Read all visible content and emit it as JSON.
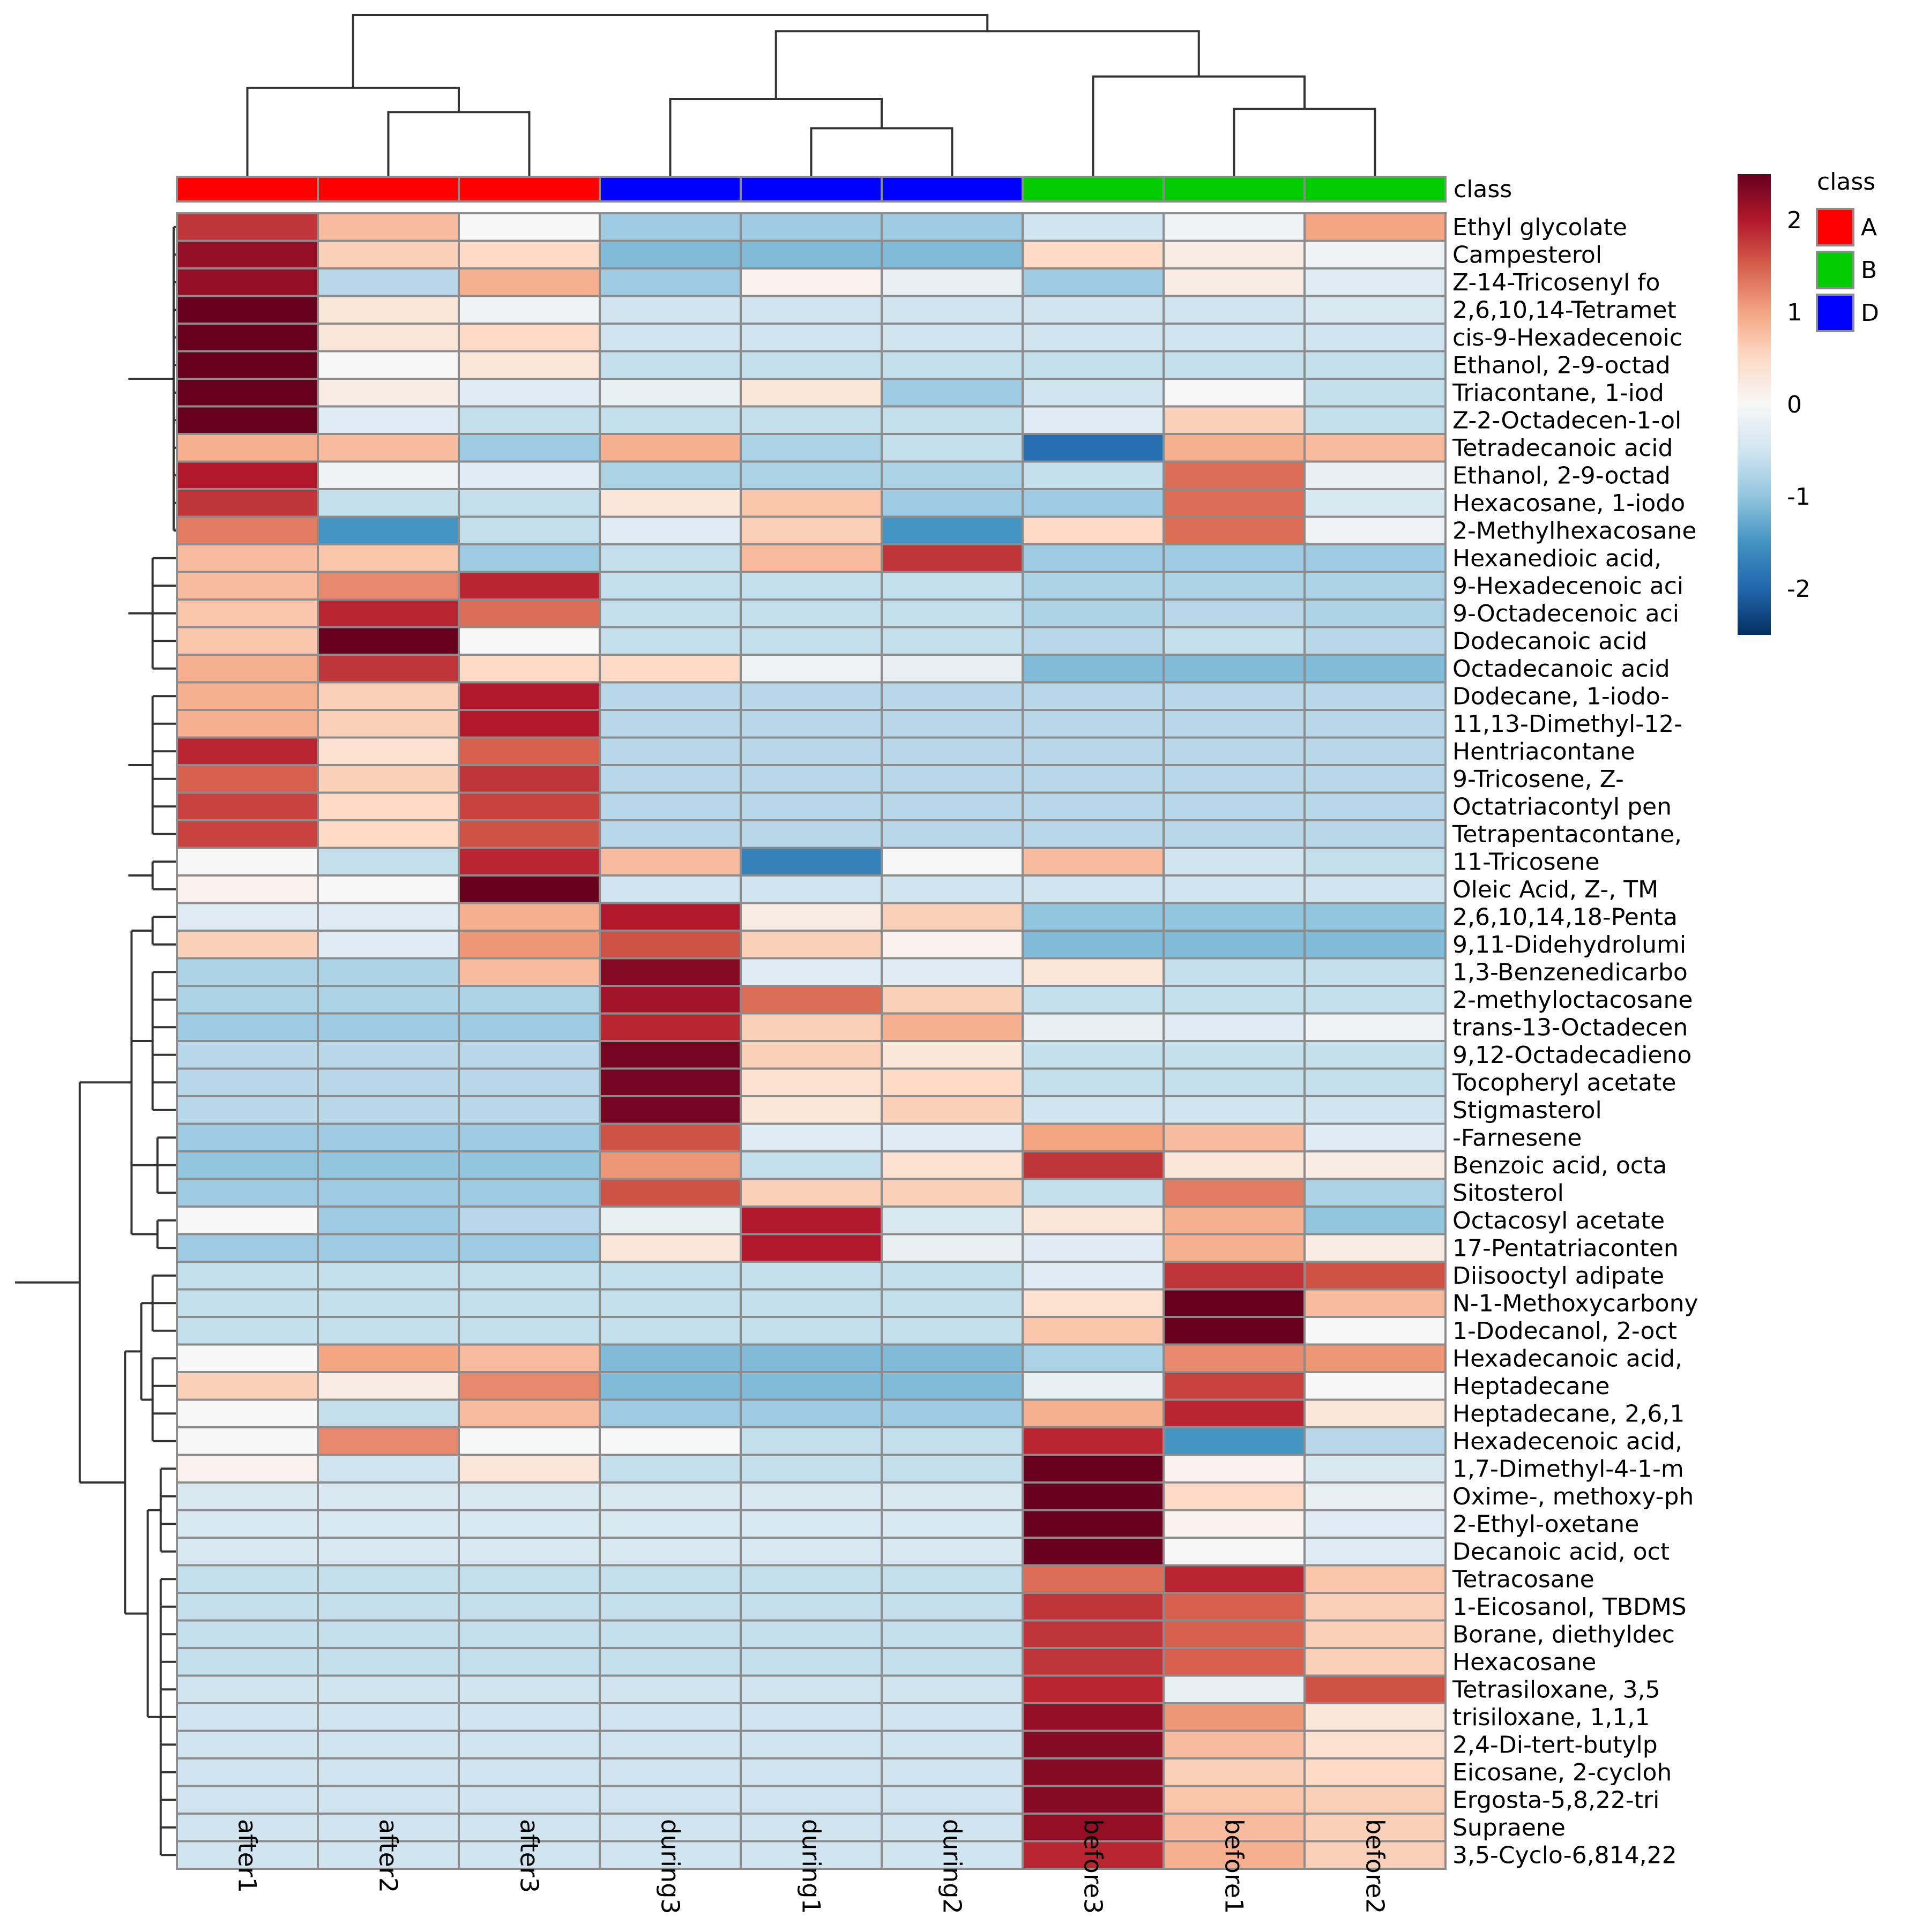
{
  "chart_data": {
    "type": "heatmap",
    "title": "",
    "columns": [
      "after1",
      "after2",
      "after3",
      "during3",
      "during1",
      "during2",
      "before3",
      "before1",
      "before2"
    ],
    "column_classes": [
      "A",
      "A",
      "A",
      "D",
      "D",
      "D",
      "B",
      "B",
      "B"
    ],
    "class_annotation_label": "class",
    "rows": [
      "Ethyl glycolate",
      "Campesterol",
      "Z-14-Tricosenyl fo",
      "2,6,10,14-Tetramet",
      "cis-9-Hexadecenoic",
      "Ethanol, 2-9-octad",
      "Triacontane, 1-iod",
      "Z-2-Octadecen-1-ol",
      "Tetradecanoic acid",
      "Ethanol, 2-9-octad",
      "Hexacosane, 1-iodo",
      "2-Methylhexacosane",
      "Hexanedioic acid,",
      "9-Hexadecenoic aci",
      "9-Octadecenoic aci",
      "Dodecanoic acid",
      "Octadecanoic acid",
      "Dodecane, 1-iodo-",
      "11,13-Dimethyl-12-",
      "Hentriacontane",
      "9-Tricosene, Z-",
      "Octatriacontyl pen",
      "Tetrapentacontane,",
      "11-Tricosene",
      "Oleic Acid, Z-, TM",
      "2,6,10,14,18-Penta",
      "9,11-Didehydrolumi",
      "1,3-Benzenedicarbo",
      "2-methyloctacosane",
      "trans-13-Octadecen",
      "9,12-Octadecadieno",
      "Tocopheryl acetate",
      "Stigmasterol",
      "-Farnesene",
      "Benzoic acid, octa",
      "Sitosterol",
      "Octacosyl acetate",
      "17-Pentatriaconten",
      "Diisooctyl adipate",
      "N-1-Methoxycarbony",
      "1-Dodecanol, 2-oct",
      "Hexadecanoic acid,",
      "Heptadecane",
      "Heptadecane, 2,6,1",
      "Hexadecenoic acid,",
      "1,7-Dimethyl-4-1-m",
      "Oxime-, methoxy-ph",
      "2-Ethyl-oxetane",
      "Decanoic acid, oct",
      "Tetracosane",
      "1-Eicosanol, TBDMS",
      "Borane, diethyldec",
      "Hexacosane",
      "Tetrasiloxane, 3,5",
      "trisiloxane, 1,1,1",
      "2,4-Di-tert-butylp",
      "Eicosane, 2-cycloh",
      "Ergosta-5,8,22-tri",
      "Supraene",
      "3,5-Cyclo-6,814,22"
    ],
    "values": [
      [
        1.8,
        0.8,
        0.0,
        -0.9,
        -0.9,
        -0.9,
        -0.5,
        -0.1,
        1.0
      ],
      [
        2.2,
        0.6,
        0.5,
        -1.1,
        -1.1,
        -1.1,
        0.5,
        0.2,
        -0.1
      ],
      [
        2.2,
        -0.7,
        0.9,
        -0.9,
        0.1,
        -0.2,
        -0.9,
        0.2,
        -0.3
      ],
      [
        2.5,
        0.3,
        -0.1,
        -0.5,
        -0.5,
        -0.5,
        -0.5,
        -0.5,
        -0.4
      ],
      [
        2.5,
        0.3,
        0.5,
        -0.5,
        -0.5,
        -0.5,
        -0.5,
        -0.5,
        -0.5
      ],
      [
        2.5,
        0.0,
        0.3,
        -0.6,
        -0.6,
        -0.6,
        -0.6,
        -0.6,
        -0.6
      ],
      [
        2.5,
        0.2,
        -0.3,
        -0.2,
        0.3,
        -0.9,
        -0.5,
        0.0,
        -0.6
      ],
      [
        2.5,
        -0.3,
        -0.6,
        -0.6,
        -0.6,
        -0.6,
        -0.3,
        0.6,
        -0.6
      ],
      [
        0.9,
        0.8,
        -0.9,
        0.9,
        -0.8,
        -0.6,
        -1.9,
        0.9,
        0.8
      ],
      [
        2.0,
        -0.1,
        -0.3,
        -0.8,
        -0.8,
        -0.8,
        -0.6,
        1.4,
        -0.2
      ],
      [
        1.8,
        -0.6,
        -0.6,
        0.3,
        0.7,
        -0.9,
        -0.9,
        1.4,
        -0.4
      ],
      [
        1.3,
        -1.5,
        -0.6,
        -0.3,
        0.6,
        -1.5,
        0.5,
        1.4,
        -0.1
      ],
      [
        0.8,
        0.7,
        -0.9,
        -0.6,
        0.8,
        1.8,
        -0.9,
        -0.9,
        -0.9
      ],
      [
        0.8,
        1.2,
        1.9,
        -0.6,
        -0.6,
        -0.6,
        -0.8,
        -0.8,
        -0.8
      ],
      [
        0.7,
        1.9,
        1.4,
        -0.6,
        -0.6,
        -0.6,
        -0.8,
        -0.7,
        -0.8
      ],
      [
        0.7,
        2.5,
        0.0,
        -0.6,
        -0.6,
        -0.6,
        -0.7,
        -0.6,
        -0.7
      ],
      [
        0.9,
        1.8,
        0.5,
        0.5,
        -0.1,
        -0.2,
        -1.1,
        -1.1,
        -1.1
      ],
      [
        0.9,
        0.6,
        2.0,
        -0.7,
        -0.7,
        -0.7,
        -0.7,
        -0.7,
        -0.7
      ],
      [
        0.9,
        0.6,
        2.0,
        -0.7,
        -0.7,
        -0.7,
        -0.7,
        -0.7,
        -0.7
      ],
      [
        1.9,
        0.4,
        1.5,
        -0.7,
        -0.7,
        -0.7,
        -0.7,
        -0.7,
        -0.7
      ],
      [
        1.5,
        0.6,
        1.8,
        -0.7,
        -0.7,
        -0.7,
        -0.7,
        -0.7,
        -0.7
      ],
      [
        1.7,
        0.5,
        1.7,
        -0.7,
        -0.7,
        -0.7,
        -0.7,
        -0.7,
        -0.7
      ],
      [
        1.7,
        0.5,
        1.6,
        -0.7,
        -0.7,
        -0.7,
        -0.7,
        -0.7,
        -0.7
      ],
      [
        0.0,
        -0.6,
        1.9,
        0.8,
        -1.7,
        0.0,
        0.8,
        -0.5,
        -0.6
      ],
      [
        0.1,
        0.0,
        2.6,
        -0.5,
        -0.5,
        -0.5,
        -0.5,
        -0.5,
        -0.5
      ],
      [
        -0.3,
        -0.3,
        0.9,
        2.0,
        0.2,
        0.6,
        -1.0,
        -1.0,
        -1.0
      ],
      [
        0.6,
        -0.3,
        1.1,
        1.6,
        0.6,
        0.1,
        -1.1,
        -1.1,
        -1.1
      ],
      [
        -0.8,
        -0.8,
        0.8,
        2.3,
        -0.3,
        -0.3,
        0.3,
        -0.6,
        -0.6
      ],
      [
        -0.8,
        -0.8,
        -0.8,
        2.1,
        1.4,
        0.6,
        -0.6,
        -0.6,
        -0.6
      ],
      [
        -0.9,
        -0.9,
        -0.9,
        1.9,
        0.6,
        0.9,
        -0.2,
        -0.3,
        -0.1
      ],
      [
        -0.7,
        -0.7,
        -0.7,
        2.4,
        0.6,
        0.3,
        -0.6,
        -0.6,
        -0.6
      ],
      [
        -0.7,
        -0.7,
        -0.7,
        2.4,
        0.4,
        0.5,
        -0.6,
        -0.6,
        -0.6
      ],
      [
        -0.7,
        -0.7,
        -0.7,
        2.4,
        0.3,
        0.6,
        -0.5,
        -0.5,
        -0.5
      ],
      [
        -0.9,
        -0.9,
        -0.9,
        1.6,
        -0.3,
        -0.3,
        1.0,
        0.8,
        -0.3
      ],
      [
        -1.0,
        -1.0,
        -1.0,
        1.1,
        -0.6,
        0.4,
        1.8,
        0.3,
        0.2
      ],
      [
        -0.9,
        -0.9,
        -0.9,
        1.6,
        0.6,
        0.6,
        -0.6,
        1.3,
        -0.8
      ],
      [
        0.0,
        -0.9,
        -0.7,
        -0.2,
        2.0,
        -0.4,
        0.3,
        0.9,
        -1.0
      ],
      [
        -0.9,
        -0.9,
        -0.9,
        0.3,
        2.0,
        -0.2,
        -0.3,
        0.9,
        0.2
      ],
      [
        -0.6,
        -0.6,
        -0.6,
        -0.6,
        -0.6,
        -0.6,
        -0.3,
        1.8,
        1.6
      ],
      [
        -0.6,
        -0.6,
        -0.6,
        -0.6,
        -0.6,
        -0.6,
        0.4,
        2.5,
        0.8
      ],
      [
        -0.6,
        -0.6,
        -0.6,
        -0.6,
        -0.6,
        -0.6,
        0.7,
        2.5,
        0.0
      ],
      [
        0.0,
        1.0,
        0.8,
        -1.1,
        -1.1,
        -1.1,
        -0.8,
        1.2,
        1.1
      ],
      [
        0.6,
        0.2,
        1.2,
        -1.1,
        -1.1,
        -1.1,
        -0.2,
        1.7,
        0.0
      ],
      [
        0.0,
        -0.6,
        0.8,
        -0.9,
        -0.9,
        -0.9,
        0.9,
        1.9,
        0.3
      ],
      [
        0.0,
        1.2,
        0.0,
        0.0,
        -0.6,
        -0.6,
        1.9,
        -1.5,
        -0.7
      ],
      [
        0.1,
        -0.5,
        0.3,
        -0.6,
        -0.6,
        -0.6,
        2.5,
        0.1,
        -0.4
      ],
      [
        -0.4,
        -0.4,
        -0.4,
        -0.4,
        -0.4,
        -0.4,
        2.6,
        0.5,
        -0.2
      ],
      [
        -0.4,
        -0.4,
        -0.4,
        -0.4,
        -0.4,
        -0.4,
        2.6,
        0.1,
        -0.3
      ],
      [
        -0.4,
        -0.4,
        -0.4,
        -0.4,
        -0.4,
        -0.4,
        2.6,
        0.0,
        -0.3
      ],
      [
        -0.6,
        -0.6,
        -0.6,
        -0.6,
        -0.6,
        -0.6,
        1.4,
        1.9,
        0.7
      ],
      [
        -0.6,
        -0.6,
        -0.6,
        -0.6,
        -0.6,
        -0.6,
        1.8,
        1.5,
        0.6
      ],
      [
        -0.6,
        -0.6,
        -0.6,
        -0.6,
        -0.6,
        -0.6,
        1.8,
        1.5,
        0.6
      ],
      [
        -0.6,
        -0.6,
        -0.6,
        -0.6,
        -0.6,
        -0.6,
        1.8,
        1.5,
        0.6
      ],
      [
        -0.5,
        -0.5,
        -0.5,
        -0.5,
        -0.5,
        -0.5,
        1.9,
        -0.2,
        1.6
      ],
      [
        -0.5,
        -0.5,
        -0.5,
        -0.5,
        -0.5,
        -0.5,
        2.2,
        1.1,
        0.3
      ],
      [
        -0.5,
        -0.5,
        -0.5,
        -0.5,
        -0.5,
        -0.5,
        2.3,
        0.8,
        0.4
      ],
      [
        -0.5,
        -0.5,
        -0.5,
        -0.5,
        -0.5,
        -0.5,
        2.3,
        0.6,
        0.5
      ],
      [
        -0.5,
        -0.5,
        -0.5,
        -0.5,
        -0.5,
        -0.5,
        2.3,
        0.7,
        0.6
      ],
      [
        -0.5,
        -0.5,
        -0.5,
        -0.5,
        -0.5,
        -0.5,
        2.2,
        0.8,
        0.6
      ],
      [
        -0.5,
        -0.5,
        -0.5,
        -0.5,
        -0.5,
        -0.5,
        1.9,
        0.9,
        0.6
      ]
    ],
    "color_scale": {
      "min": -2.5,
      "max": 2.5,
      "ticks": [
        "2",
        "1",
        "0",
        "-1",
        "-2"
      ],
      "tick_values": [
        2,
        1,
        0,
        -1,
        -2
      ],
      "colors": [
        "#053061",
        "#2166ac",
        "#4393c3",
        "#92c5de",
        "#d1e5f0",
        "#f7f7f7",
        "#fddbc7",
        "#f4a582",
        "#d6604d",
        "#b2182b",
        "#67001f"
      ]
    },
    "legend": {
      "title": "class",
      "entries": [
        {
          "label": "A",
          "color": "#ff0000"
        },
        {
          "label": "B",
          "color": "#00cc00"
        },
        {
          "label": "D",
          "color": "#0000ff"
        }
      ]
    },
    "column_dendrogram": {
      "merges": [
        [
          [
            1
          ],
          [
            2
          ],
          0.4
        ],
        [
          [
            4
          ],
          [
            5
          ],
          0.3
        ],
        [
          [
            7
          ],
          [
            8
          ],
          0.42
        ],
        [
          [
            0
          ],
          [
            1,
            2
          ],
          0.55
        ],
        [
          [
            3
          ],
          [
            4,
            5
          ],
          0.48
        ],
        [
          [
            6
          ],
          [
            7,
            8
          ],
          0.62
        ],
        [
          [
            3,
            4,
            5
          ],
          [
            6,
            7,
            8
          ],
          0.9
        ],
        [
          [
            0,
            1,
            2
          ],
          [
            3,
            4,
            5,
            6,
            7,
            8
          ],
          1.0
        ]
      ]
    },
    "row_dendrogram": {
      "merges": [
        [
          [
            0,
            11
          ],
          0.98
        ],
        [
          [
            0,
            7
          ],
          0.9
        ],
        [
          [
            8,
            11
          ],
          0.9
        ],
        [
          [
            12,
            16
          ],
          0.85
        ],
        [
          [
            17,
            22
          ],
          0.85
        ],
        [
          [
            23,
            24
          ],
          0.85
        ],
        [
          [
            0,
            24
          ],
          0.7
        ],
        [
          [
            25,
            26
          ],
          0.85
        ],
        [
          [
            27,
            32
          ],
          0.85
        ],
        [
          [
            33,
            35
          ],
          0.88
        ],
        [
          [
            36,
            37
          ],
          0.88
        ],
        [
          [
            25,
            37
          ],
          0.72
        ],
        [
          [
            38,
            40
          ],
          0.85
        ],
        [
          [
            41,
            44
          ],
          0.85
        ],
        [
          [
            38,
            44
          ],
          0.78
        ],
        [
          [
            45,
            48
          ],
          0.9
        ],
        [
          [
            49,
            59
          ],
          0.9
        ],
        [
          [
            45,
            59
          ],
          0.82
        ],
        [
          [
            38,
            59
          ],
          0.68
        ],
        [
          [
            25,
            59
          ],
          0.4
        ],
        [
          [
            0,
            59
          ],
          0.0
        ]
      ]
    }
  }
}
